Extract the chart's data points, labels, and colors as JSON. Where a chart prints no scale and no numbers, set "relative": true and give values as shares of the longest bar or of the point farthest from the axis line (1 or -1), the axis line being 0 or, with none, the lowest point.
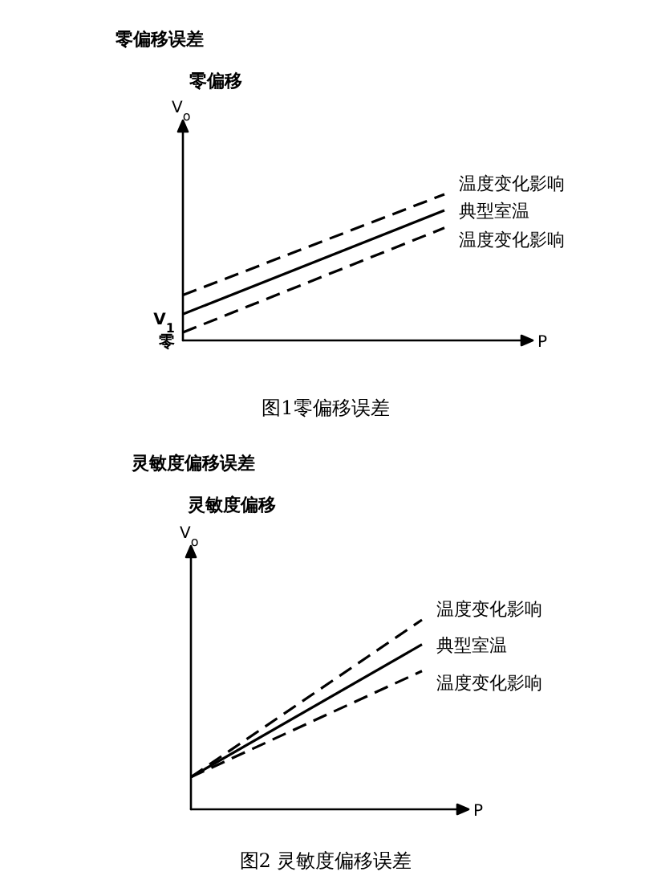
{
  "chart_data": [
    {
      "type": "line",
      "title": "零偏移误差",
      "subtitle": "零偏移",
      "ylabel": "V$_{o}$",
      "xlabel": "P",
      "relative": true,
      "legend": false,
      "marker": "none",
      "categories": [
        null,
        null
      ],
      "series": [
        {
          "name": "温度变化影响",
          "color": "#000000",
          "line_style": "dashed",
          "values": [
            0.31,
            1
          ]
        },
        {
          "name": "典型室温",
          "color": "#000000",
          "line_style": "solid",
          "values": [
            0.18,
            0.89
          ]
        },
        {
          "name": "温度变化影响",
          "color": "#000000",
          "line_style": "dashed",
          "values": [
            0.055,
            0.77
          ]
        }
      ],
      "annotations": [
        "V$_{1}$",
        "零",
        "图1零偏移误差"
      ]
    },
    {
      "type": "line",
      "title": "灵敏度偏移误差",
      "subtitle": "灵敏度偏移",
      "ylabel": "V$_{o}$",
      "xlabel": "P",
      "relative": true,
      "legend": false,
      "marker": "none",
      "categories": [
        null,
        null
      ],
      "series": [
        {
          "name": "温度变化影响",
          "color": "#000000",
          "line_style": "dashed",
          "values": [
            0.17,
            1
          ]
        },
        {
          "name": "典型室温",
          "color": "#000000",
          "line_style": "solid",
          "values": [
            0.17,
            0.87
          ]
        },
        {
          "name": "温度变化影响",
          "color": "#000000",
          "line_style": "dashed",
          "values": [
            0.17,
            0.73
          ]
        }
      ],
      "annotations": [
        "图2 灵敏度偏移误差"
      ]
    }
  ]
}
